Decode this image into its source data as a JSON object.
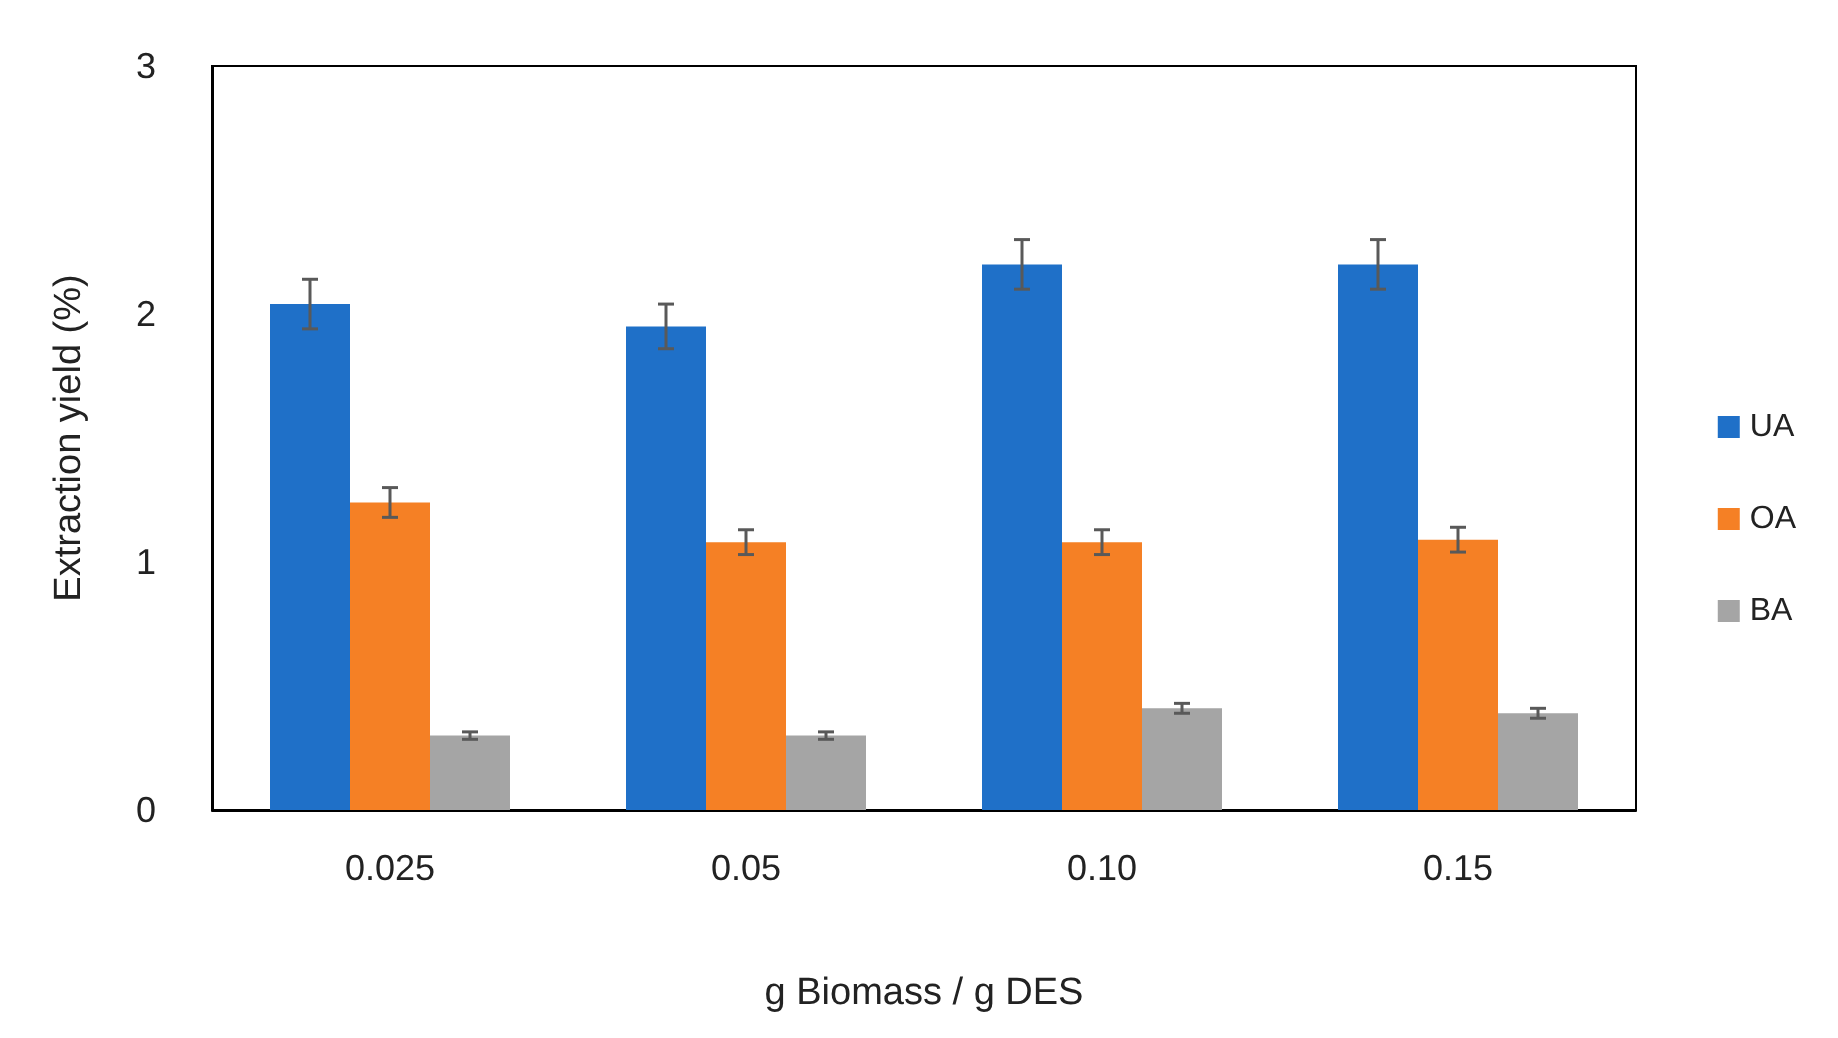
{
  "chart_data": {
    "type": "bar",
    "xlabel": "g Biomass / g DES",
    "ylabel": "Extraction yield (%)",
    "categories": [
      "0.025",
      "0.05",
      "0.10",
      "0.15"
    ],
    "series": [
      {
        "name": "UA",
        "color": "#1f70c8",
        "values": [
          2.04,
          1.95,
          2.2,
          2.2
        ],
        "errors": [
          0.1,
          0.09,
          0.1,
          0.1
        ]
      },
      {
        "name": "OA",
        "color": "#f58025",
        "values": [
          1.24,
          1.08,
          1.08,
          1.09
        ],
        "errors": [
          0.06,
          0.05,
          0.05,
          0.05
        ]
      },
      {
        "name": "BA",
        "color": "#a5a5a5",
        "values": [
          0.3,
          0.3,
          0.41,
          0.39
        ],
        "errors": [
          0.015,
          0.015,
          0.02,
          0.02
        ]
      }
    ],
    "ylim": [
      0,
      3
    ],
    "yticks": [
      0,
      1,
      2,
      3
    ],
    "grid": false,
    "legend": "right"
  }
}
